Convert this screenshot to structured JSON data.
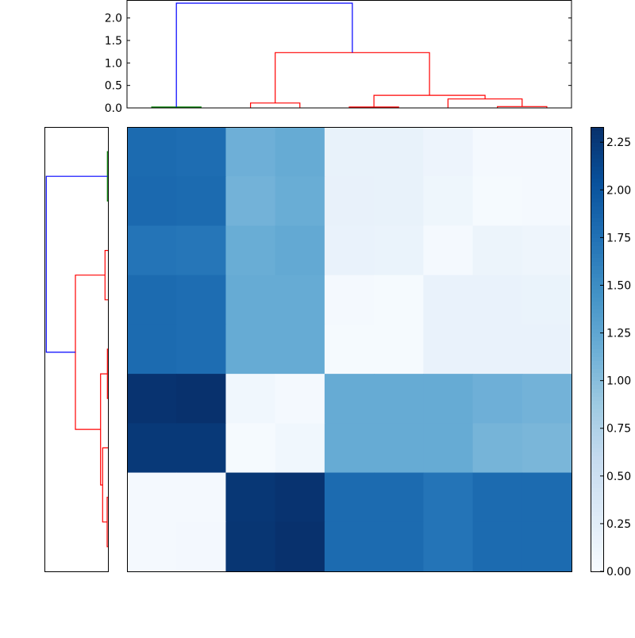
{
  "chart_data": [
    {
      "type": "dendrogram",
      "position": "top",
      "yticks": [
        0.0,
        0.5,
        1.0,
        1.5,
        2.0
      ],
      "ytick_labels": [
        "0.0",
        "0.5",
        "1.0",
        "1.5",
        "2.0"
      ],
      "ylim": [
        0,
        2.4
      ],
      "xlim": [
        0,
        9
      ],
      "links": [
        {
          "color": "#008000",
          "x": [
            0.5,
            0.5,
            1.5,
            1.5
          ],
          "y": [
            0.0,
            0.02,
            0.02,
            0.0
          ]
        },
        {
          "color": "#ff0000",
          "x": [
            2.5,
            2.5,
            3.5,
            3.5
          ],
          "y": [
            0.0,
            0.11,
            0.11,
            0.0
          ]
        },
        {
          "color": "#ff0000",
          "x": [
            4.5,
            4.5,
            5.5,
            5.5
          ],
          "y": [
            0.0,
            0.02,
            0.02,
            0.0
          ]
        },
        {
          "color": "#ff0000",
          "x": [
            7.5,
            7.5,
            8.5,
            8.5
          ],
          "y": [
            0.0,
            0.03,
            0.03,
            0.0
          ]
        },
        {
          "color": "#ff0000",
          "x": [
            6.5,
            6.5,
            8.0,
            8.0
          ],
          "y": [
            0.0,
            0.2,
            0.2,
            0.03
          ]
        },
        {
          "color": "#ff0000",
          "x": [
            5.0,
            5.0,
            7.25,
            7.25
          ],
          "y": [
            0.02,
            0.28,
            0.28,
            0.2
          ]
        },
        {
          "color": "#ff0000",
          "x": [
            3.0,
            3.0,
            6.125,
            6.125
          ],
          "y": [
            0.11,
            1.23,
            1.23,
            0.28
          ]
        },
        {
          "color": "#0000ff",
          "x": [
            1.0,
            1.0,
            4.5625,
            4.5625
          ],
          "y": [
            0.02,
            2.33,
            2.33,
            1.23
          ]
        }
      ]
    },
    {
      "type": "dendrogram",
      "position": "left",
      "xlim": [
        2.4,
        0
      ],
      "ylim": [
        0,
        9
      ],
      "links": [
        {
          "color": "#008000",
          "y": [
            0.5,
            0.5,
            1.5,
            1.5
          ],
          "x": [
            0.0,
            0.02,
            0.02,
            0.0
          ]
        },
        {
          "color": "#ff0000",
          "y": [
            2.5,
            2.5,
            3.5,
            3.5
          ],
          "x": [
            0.0,
            0.11,
            0.11,
            0.0
          ]
        },
        {
          "color": "#ff0000",
          "y": [
            4.5,
            4.5,
            5.5,
            5.5
          ],
          "x": [
            0.0,
            0.02,
            0.02,
            0.0
          ]
        },
        {
          "color": "#ff0000",
          "y": [
            7.5,
            7.5,
            8.5,
            8.5
          ],
          "x": [
            0.0,
            0.03,
            0.03,
            0.0
          ]
        },
        {
          "color": "#ff0000",
          "y": [
            6.5,
            6.5,
            8.0,
            8.0
          ],
          "x": [
            0.0,
            0.2,
            0.2,
            0.03
          ]
        },
        {
          "color": "#ff0000",
          "y": [
            5.0,
            5.0,
            7.25,
            7.25
          ],
          "x": [
            0.02,
            0.28,
            0.28,
            0.2
          ]
        },
        {
          "color": "#ff0000",
          "y": [
            3.0,
            3.0,
            6.125,
            6.125
          ],
          "x": [
            0.11,
            1.23,
            1.23,
            0.28
          ]
        },
        {
          "color": "#0000ff",
          "y": [
            1.0,
            1.0,
            4.5625,
            4.5625
          ],
          "x": [
            0.02,
            2.33,
            2.33,
            1.23
          ]
        }
      ]
    },
    {
      "type": "heatmap",
      "colormap": "Blues",
      "vmin": 0.0,
      "vmax": 2.33,
      "rows": 9,
      "cols": 9,
      "values": [
        [
          1.8,
          1.78,
          1.15,
          1.2,
          0.17,
          0.17,
          0.12,
          0.04,
          0.03
        ],
        [
          1.82,
          1.8,
          1.12,
          1.18,
          0.18,
          0.17,
          0.1,
          0.02,
          0.03
        ],
        [
          1.72,
          1.7,
          1.18,
          1.22,
          0.16,
          0.15,
          0.03,
          0.13,
          0.11
        ],
        [
          1.8,
          1.78,
          1.2,
          1.2,
          0.03,
          0.02,
          0.16,
          0.16,
          0.15
        ],
        [
          1.8,
          1.78,
          1.2,
          1.2,
          0.02,
          0.02,
          0.16,
          0.16,
          0.16
        ],
        [
          2.3,
          2.32,
          0.08,
          0.03,
          1.2,
          1.2,
          1.2,
          1.15,
          1.12
        ],
        [
          2.25,
          2.25,
          0.02,
          0.08,
          1.2,
          1.2,
          1.2,
          1.1,
          1.08
        ],
        [
          0.04,
          0.03,
          2.27,
          2.3,
          1.8,
          1.8,
          1.72,
          1.8,
          1.8
        ],
        [
          0.03,
          0.05,
          2.28,
          2.32,
          1.8,
          1.8,
          1.72,
          1.8,
          1.8
        ]
      ]
    },
    {
      "type": "colorbar",
      "colormap": "Blues",
      "ticks": [
        0.0,
        0.25,
        0.5,
        0.75,
        1.0,
        1.25,
        1.5,
        1.75,
        2.0,
        2.25
      ],
      "tick_labels": [
        "0.00",
        "0.25",
        "0.50",
        "0.75",
        "1.00",
        "1.25",
        "1.50",
        "1.75",
        "2.00",
        "2.25"
      ],
      "vmin": 0.0,
      "vmax": 2.33
    }
  ]
}
